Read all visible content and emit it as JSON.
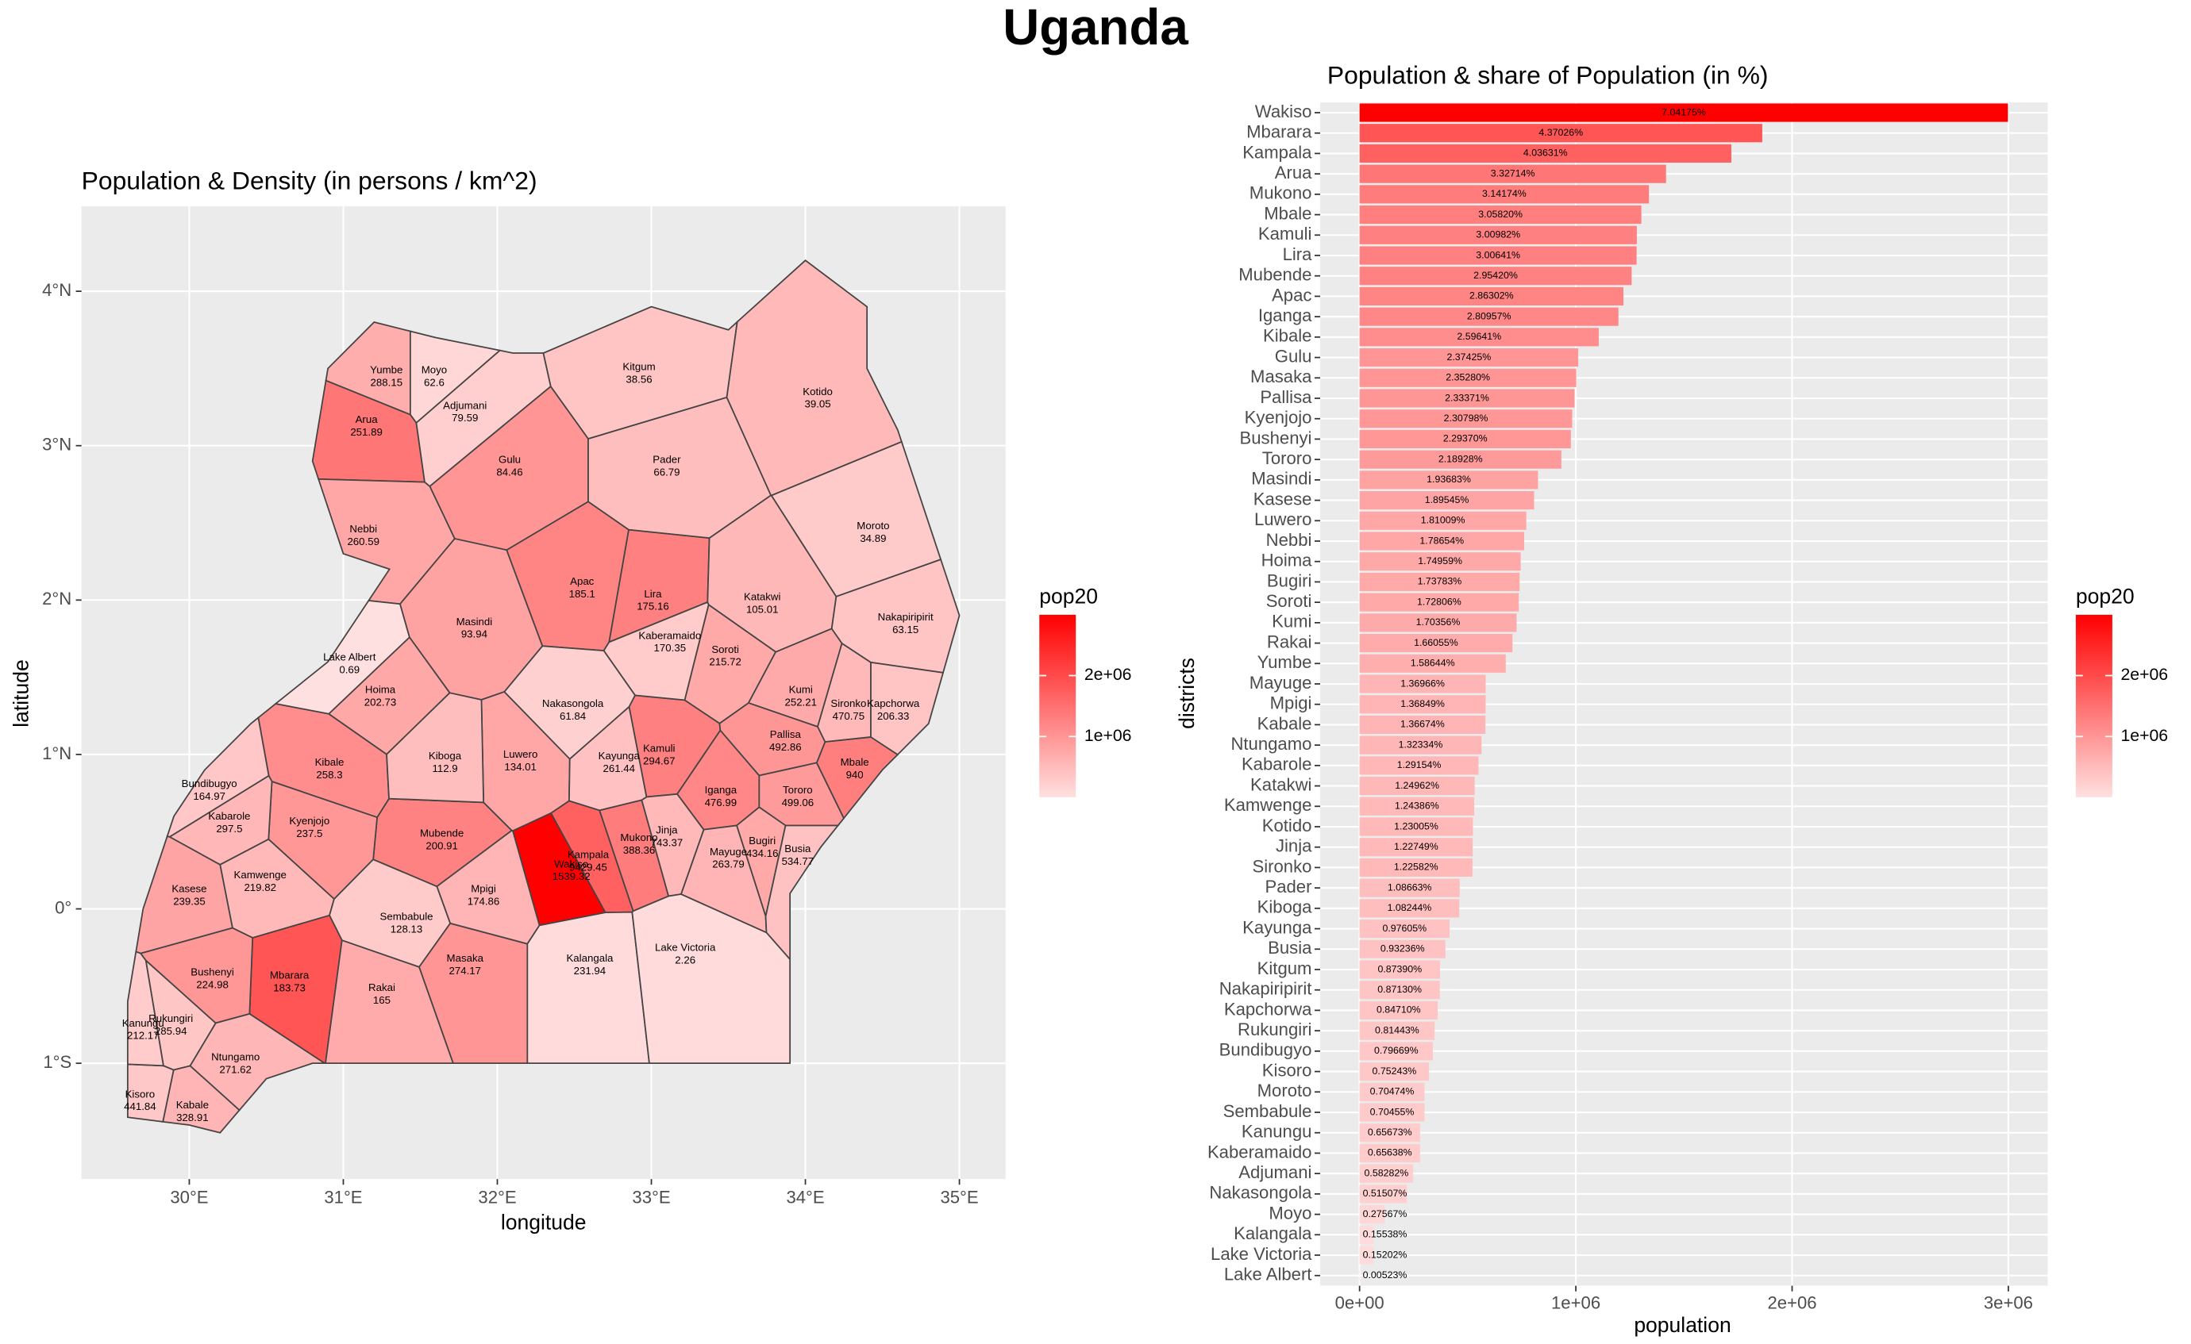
{
  "title": "Uganda",
  "chart_data": [
    {
      "type": "map",
      "title": "Population & Density (in persons / km^2)",
      "xlabel": "longitude",
      "ylabel": "latitude",
      "legend_title": "pop20",
      "legend_position": "right",
      "grid": true,
      "color_low": "#ffe0e0",
      "color_high": "#ff0000",
      "xlim": [
        29.3,
        35.3
      ],
      "ylim": [
        -1.75,
        4.55
      ],
      "xticks": [
        {
          "value": 30,
          "label": "30°E"
        },
        {
          "value": 31,
          "label": "31°E"
        },
        {
          "value": 32,
          "label": "32°E"
        },
        {
          "value": 33,
          "label": "33°E"
        },
        {
          "value": 34,
          "label": "34°E"
        },
        {
          "value": 35,
          "label": "35°E"
        }
      ],
      "yticks": [
        {
          "value": -1,
          "label": "1°S"
        },
        {
          "value": 0,
          "label": "0°"
        },
        {
          "value": 1,
          "label": "1°N"
        },
        {
          "value": 2,
          "label": "2°N"
        },
        {
          "value": 3,
          "label": "3°N"
        },
        {
          "value": 4,
          "label": "4°N"
        }
      ],
      "legend_ticks": [
        {
          "value": 1000000,
          "label": "1e+06"
        },
        {
          "value": 2000000,
          "label": "2e+06"
        }
      ],
      "x": [
        32.48,
        30.65,
        32.59,
        31.15,
        32.92,
        34.32,
        33.05,
        33.01,
        31.64,
        32.55,
        33.45,
        30.91,
        32.08,
        31.79,
        33.87,
        30.78,
        30.15,
        33.95,
        31.85,
        30.0,
        32.15,
        31.13,
        31.24,
        33.72,
        33.48,
        33.97,
        31.25,
        31.28,
        33.5,
        31.91,
        30.02,
        30.3,
        30.26,
        33.72,
        30.46,
        34.08,
        33.1,
        34.28,
        33.1,
        31.66,
        32.79,
        33.95,
        32.92,
        34.65,
        34.57,
        29.88,
        30.13,
        29.68,
        34.44,
        31.41,
        29.7,
        33.12,
        31.79,
        32.49,
        31.59,
        32.6,
        33.22,
        31.04
      ],
      "y": [
        0.25,
        -0.47,
        0.31,
        3.13,
        0.42,
        0.91,
        1.0,
        2.0,
        0.45,
        2.08,
        0.73,
        0.91,
        2.87,
        -0.36,
        1.09,
        0.53,
        -0.45,
        0.73,
        1.82,
        0.09,
        0.96,
        2.42,
        1.38,
        0.4,
        1.64,
        1.38,
        -0.55,
        3.45,
        0.33,
        0.09,
        -1.31,
        -1.0,
        0.56,
        1.98,
        0.18,
        3.31,
        0.47,
        1.29,
        2.87,
        0.95,
        0.95,
        0.35,
        3.47,
        1.85,
        1.29,
        -0.75,
        0.77,
        -1.24,
        2.44,
        -0.09,
        -0.78,
        1.73,
        3.22,
        1.29,
        3.45,
        -0.36,
        -0.29,
        1.59
      ],
      "values": [
        1539.32,
        183.73,
        9429.45,
        251.89,
        388.36,
        940,
        294.67,
        175.16,
        200.91,
        185.1,
        476.99,
        258.3,
        84.46,
        274.17,
        492.86,
        237.5,
        224.98,
        499.06,
        93.94,
        239.35,
        134.01,
        260.59,
        202.73,
        434.16,
        215.72,
        252.21,
        165,
        288.15,
        263.79,
        174.86,
        328.91,
        271.62,
        297.5,
        105.01,
        219.82,
        39.05,
        743.37,
        470.75,
        66.79,
        112.9,
        261.44,
        534.77,
        38.56,
        63.15,
        206.33,
        285.94,
        164.97,
        441.84,
        34.89,
        128.13,
        212.17,
        170.35,
        79.59,
        61.84,
        62.6,
        231.94,
        2.26,
        0.69
      ]
    },
    {
      "type": "bar",
      "orientation": "horizontal",
      "title": "Population & share of Population (in %)",
      "xlabel": "population",
      "ylabel": "districts",
      "legend_title": "pop20",
      "legend_position": "right",
      "grid": true,
      "color_low": "#ffe0e0",
      "color_high": "#ff0000",
      "xlim": [
        -182000,
        3182000
      ],
      "xticks": [
        {
          "value": 0,
          "label": "0e+00"
        },
        {
          "value": 1000000,
          "label": "1e+06"
        },
        {
          "value": 2000000,
          "label": "2e+06"
        },
        {
          "value": 3000000,
          "label": "3e+06"
        }
      ],
      "legend_ticks": [
        {
          "value": 1000000,
          "label": "1e+06"
        },
        {
          "value": 2000000,
          "label": "2e+06"
        }
      ],
      "categories": [
        "Wakiso",
        "Mbarara",
        "Kampala",
        "Arua",
        "Mukono",
        "Mbale",
        "Kamuli",
        "Lira",
        "Mubende",
        "Apac",
        "Iganga",
        "Kibale",
        "Gulu",
        "Masaka",
        "Pallisa",
        "Kyenjojo",
        "Bushenyi",
        "Tororo",
        "Masindi",
        "Kasese",
        "Luwero",
        "Nebbi",
        "Hoima",
        "Bugiri",
        "Soroti",
        "Kumi",
        "Rakai",
        "Yumbe",
        "Mayuge",
        "Mpigi",
        "Kabale",
        "Ntungamo",
        "Kabarole",
        "Katakwi",
        "Kamwenge",
        "Kotido",
        "Jinja",
        "Sironko",
        "Pader",
        "Kiboga",
        "Kayunga",
        "Busia",
        "Kitgum",
        "Nakapiripirit",
        "Kapchorwa",
        "Rukungiri",
        "Bundibugyo",
        "Kisoro",
        "Moroto",
        "Sembabule",
        "Kanungu",
        "Kaberamaido",
        "Adjumani",
        "Nakasongola",
        "Moyo",
        "Kalangala",
        "Lake Victoria",
        "Lake Albert"
      ],
      "values": [
        2998000,
        1862000,
        1719000,
        1417000,
        1338000,
        1303000,
        1282000,
        1281000,
        1258000,
        1220000,
        1197000,
        1106000,
        1011000,
        1002000,
        994000,
        983000,
        977000,
        933000,
        825000,
        807000,
        771000,
        761000,
        745000,
        740000,
        736000,
        726000,
        707000,
        676000,
        583000,
        583000,
        582000,
        564000,
        550000,
        532000,
        530000,
        524000,
        523000,
        522000,
        463000,
        461000,
        416000,
        397000,
        372000,
        371000,
        361000,
        347000,
        339000,
        321000,
        300000,
        300000,
        280000,
        280000,
        248000,
        219000,
        117000,
        66000,
        65000,
        2000
      ],
      "share_labels": [
        "7.04175%",
        "4.37026%",
        "4.03631%",
        "3.32714%",
        "3.14174%",
        "3.05820%",
        "3.00982%",
        "3.00641%",
        "2.95420%",
        "2.86302%",
        "2.80957%",
        "2.59641%",
        "2.37425%",
        "2.35280%",
        "2.33371%",
        "2.30798%",
        "2.29370%",
        "2.18928%",
        "1.93683%",
        "1.89545%",
        "1.81009%",
        "1.78654%",
        "1.74959%",
        "1.73783%",
        "1.72806%",
        "1.70356%",
        "1.66055%",
        "1.58644%",
        "1.36966%",
        "1.36849%",
        "1.36674%",
        "1.32334%",
        "1.29154%",
        "1.24962%",
        "1.24386%",
        "1.23005%",
        "1.22749%",
        "1.22582%",
        "1.08663%",
        "1.08244%",
        "0.97605%",
        "0.93236%",
        "0.87390%",
        "0.87130%",
        "0.84710%",
        "0.81443%",
        "0.79669%",
        "0.75243%",
        "0.70474%",
        "0.70455%",
        "0.65673%",
        "0.65638%",
        "0.58282%",
        "0.51507%",
        "0.27567%",
        "0.15538%",
        "0.15202%",
        "0.00523%"
      ]
    }
  ]
}
